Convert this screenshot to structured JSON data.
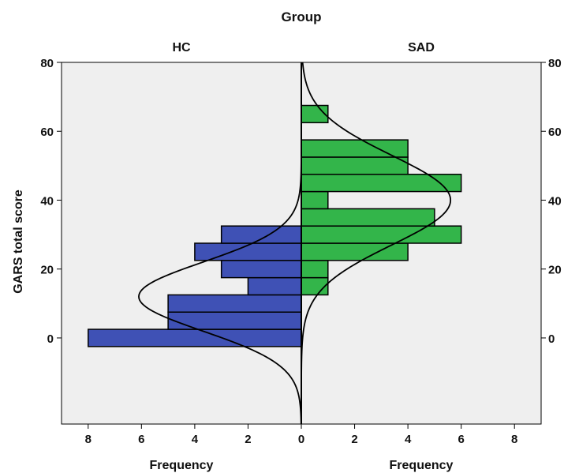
{
  "chart_data": {
    "type": "bar",
    "orientation": "horizontal",
    "layout": "back-to-back population pyramid with normal curves",
    "title": "Group",
    "panels": [
      {
        "name": "HC",
        "side": "left",
        "color": "#3f51b5",
        "bins": [
          {
            "y": 0,
            "count": 8
          },
          {
            "y": 5,
            "count": 5
          },
          {
            "y": 10,
            "count": 5
          },
          {
            "y": 15,
            "count": 2
          },
          {
            "y": 20,
            "count": 3
          },
          {
            "y": 25,
            "count": 4
          },
          {
            "y": 30,
            "count": 3
          }
        ],
        "curve": {
          "mean": 12,
          "sd": 10,
          "peak": 6.1
        }
      },
      {
        "name": "SAD",
        "side": "right",
        "color": "#33b54a",
        "bins": [
          {
            "y": 15,
            "count": 1
          },
          {
            "y": 20,
            "count": 1
          },
          {
            "y": 25,
            "count": 4
          },
          {
            "y": 30,
            "count": 6
          },
          {
            "y": 35,
            "count": 5
          },
          {
            "y": 40,
            "count": 1
          },
          {
            "y": 45,
            "count": 6
          },
          {
            "y": 50,
            "count": 4
          },
          {
            "y": 55,
            "count": 4
          },
          {
            "y": 65,
            "count": 1
          }
        ],
        "curve": {
          "mean": 40,
          "sd": 13,
          "peak": 5.6
        }
      }
    ],
    "bin_width": 5,
    "ylabel": "GARS total score",
    "xlabel": "Frequency",
    "y_ticks": [
      0,
      20,
      40,
      60,
      80
    ],
    "x_ticks": [
      8,
      6,
      4,
      2,
      0,
      2,
      4,
      6,
      8
    ],
    "ylim": [
      -25,
      80
    ],
    "xlim": [
      -9,
      9
    ],
    "grid": false,
    "legend": "none",
    "plot_background": "#efefef"
  }
}
